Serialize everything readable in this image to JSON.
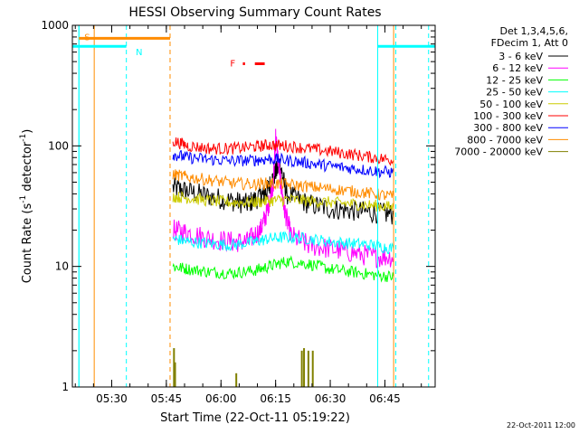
{
  "chart_data": {
    "type": "line",
    "title": "HESSI Observing Summary Count Rates",
    "xlabel": "Start Time (22-Oct-11 05:19:22)",
    "ylabel_main": "Count Rate (s",
    "ylabel_sup1": "-1",
    "ylabel_mid": " detector",
    "ylabel_sup2": "-1",
    "ylabel_end": ")",
    "yscale": "log",
    "ylim": [
      1,
      1000
    ],
    "xlim": [
      5.32,
      6.98
    ],
    "x_ticks": [
      {
        "value": 5.5,
        "label": "05:30"
      },
      {
        "value": 5.75,
        "label": "05:45"
      },
      {
        "value": 6.0,
        "label": "06:00"
      },
      {
        "value": 6.25,
        "label": "06:15"
      },
      {
        "value": 6.5,
        "label": "06:30"
      },
      {
        "value": 6.75,
        "label": "06:45"
      }
    ],
    "y_ticks": [
      {
        "value": 1,
        "label": "1"
      },
      {
        "value": 10,
        "label": "10"
      },
      {
        "value": 100,
        "label": "100"
      },
      {
        "value": 1000,
        "label": "1000"
      }
    ],
    "legend_header": [
      "Det 1,3,4,5,6,",
      "FDecim 1, Att 0"
    ],
    "legend_placement": "right",
    "series": [
      {
        "name": "3 - 6 keV",
        "color": "#000000",
        "x": [
          5.78,
          5.85,
          5.95,
          6.05,
          6.12,
          6.18,
          6.21,
          6.24,
          6.27,
          6.3,
          6.4,
          6.5,
          6.6,
          6.7,
          6.79
        ],
        "values": [
          45,
          42,
          38,
          35,
          33,
          38,
          42,
          55,
          70,
          40,
          33,
          30,
          29,
          28,
          27
        ]
      },
      {
        "name": "6 - 12 keV",
        "color": "#ff00ff",
        "x": [
          5.78,
          5.85,
          5.95,
          6.05,
          6.12,
          6.18,
          6.21,
          6.24,
          6.25,
          6.27,
          6.29,
          6.32,
          6.4,
          6.5,
          6.6,
          6.7,
          6.79
        ],
        "values": [
          20,
          19,
          17,
          16,
          16,
          20,
          28,
          50,
          120,
          55,
          30,
          18,
          15,
          14,
          13,
          12,
          12
        ]
      },
      {
        "name": "12 - 25 keV",
        "color": "#00ff00",
        "x": [
          5.78,
          5.85,
          5.95,
          6.05,
          6.15,
          6.22,
          6.3,
          6.4,
          6.5,
          6.6,
          6.7,
          6.79
        ],
        "values": [
          10,
          9.5,
          9,
          8.8,
          9.2,
          10,
          11,
          10.5,
          9.5,
          9,
          8.5,
          8.2
        ]
      },
      {
        "name": "25 - 50 keV",
        "color": "#00ffff",
        "x": [
          5.78,
          5.85,
          5.95,
          6.05,
          6.15,
          6.22,
          6.3,
          6.4,
          6.5,
          6.6,
          6.7,
          6.79
        ],
        "values": [
          17,
          16,
          15.5,
          15,
          16,
          17,
          17.5,
          17,
          16,
          15.5,
          15,
          14
        ]
      },
      {
        "name": "50 - 100 keV",
        "color": "#cccc00",
        "x": [
          5.78,
          5.85,
          5.95,
          6.05,
          6.15,
          6.22,
          6.3,
          6.4,
          6.5,
          6.6,
          6.7,
          6.79
        ],
        "values": [
          38,
          37,
          35,
          34,
          34,
          35,
          36,
          35,
          34,
          33,
          32,
          31
        ]
      },
      {
        "name": "100 - 300 keV",
        "color": "#ff0000",
        "x": [
          5.78,
          5.85,
          5.95,
          6.05,
          6.15,
          6.22,
          6.3,
          6.4,
          6.5,
          6.6,
          6.7,
          6.79
        ],
        "values": [
          110,
          100,
          95,
          95,
          98,
          102,
          100,
          95,
          90,
          85,
          80,
          76
        ]
      },
      {
        "name": "300 - 800 keV",
        "color": "#0000ff",
        "x": [
          5.78,
          5.85,
          5.95,
          6.05,
          6.15,
          6.22,
          6.3,
          6.4,
          6.5,
          6.6,
          6.7,
          6.79
        ],
        "values": [
          85,
          80,
          77,
          75,
          76,
          78,
          76,
          72,
          68,
          65,
          62,
          60
        ]
      },
      {
        "name": "800 - 7000 keV",
        "color": "#ff8c00",
        "x": [
          5.78,
          5.85,
          5.95,
          6.05,
          6.15,
          6.22,
          6.3,
          6.4,
          6.5,
          6.6,
          6.7,
          6.79
        ],
        "values": [
          58,
          55,
          52,
          49,
          48,
          49,
          48,
          46,
          44,
          42,
          40,
          38
        ]
      },
      {
        "name": "7000 - 20000 keV",
        "color": "#808000",
        "x": [],
        "values": []
      }
    ],
    "vertical_lines": [
      {
        "x": 5.35,
        "color": "#00ffff",
        "style": "solid"
      },
      {
        "x": 5.35,
        "color": "#00ffff",
        "style": "solid"
      },
      {
        "x": 5.42,
        "color": "#ff8c00",
        "style": "solid"
      },
      {
        "x": 5.567,
        "color": "#00ffff",
        "style": "dashed"
      },
      {
        "x": 5.767,
        "color": "#ff8c00",
        "style": "dashed"
      },
      {
        "x": 6.717,
        "color": "#00ffff",
        "style": "solid"
      },
      {
        "x": 6.79,
        "color": "#ff8c00",
        "style": "solid"
      },
      {
        "x": 6.8,
        "color": "#00ffff",
        "style": "dashed"
      },
      {
        "x": 6.95,
        "color": "#00ffff",
        "style": "dashed"
      }
    ],
    "flag_bars": [
      {
        "label": "S",
        "color": "#ff8c00",
        "x0": 5.35,
        "x1": 5.767,
        "y": 780
      },
      {
        "label": "N",
        "color": "#00ffff",
        "x0": 5.32,
        "x1": 5.567,
        "y": 670
      },
      {
        "label": "",
        "color": "#00ffff",
        "x0": 6.717,
        "x1": 6.98,
        "y": 670
      }
    ],
    "flare_marker": {
      "label": "F",
      "color": "#ff0000",
      "segments": [
        [
          6.1,
          6.11
        ],
        [
          6.155,
          6.2
        ]
      ],
      "y": 480
    },
    "spikes": {
      "color": "#808000",
      "x": [
        5.785,
        5.79,
        6.07,
        6.37,
        6.38,
        6.4,
        6.42
      ],
      "values": [
        2.1,
        1.6,
        1.3,
        2.0,
        2.1,
        2.0,
        2.0
      ]
    }
  },
  "timestamp": "22-Oct-2011 12:00"
}
